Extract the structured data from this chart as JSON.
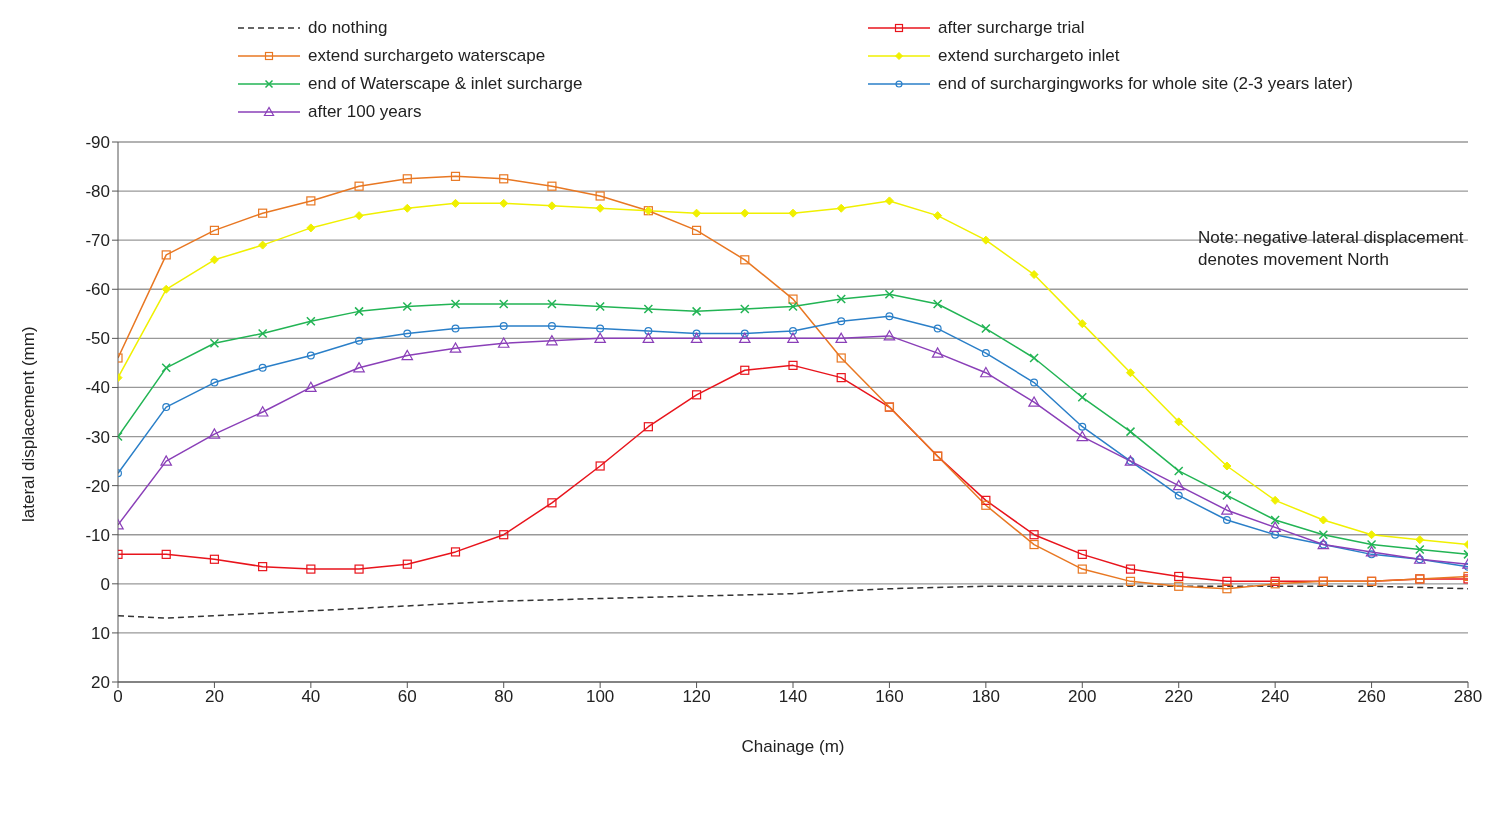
{
  "chart_data": {
    "type": "line",
    "xlabel": "Chainage (m)",
    "ylabel": "lateral displacement (mm)",
    "x": [
      0,
      10,
      20,
      30,
      40,
      50,
      60,
      70,
      80,
      90,
      100,
      110,
      120,
      130,
      140,
      150,
      160,
      170,
      180,
      190,
      200,
      210,
      220,
      230,
      240,
      250,
      260,
      270,
      280
    ],
    "series": [
      {
        "name": "do nothing",
        "color": "#333333",
        "marker": "none",
        "line_style": "dashed",
        "x": [
          0,
          10,
          20,
          40,
          60,
          80,
          100,
          120,
          140,
          160,
          180,
          200,
          220,
          240,
          260,
          280
        ],
        "values": [
          6.5,
          7,
          6.5,
          5.5,
          4.5,
          3.5,
          3,
          2.5,
          2,
          1,
          0.5,
          0.5,
          0.5,
          0.5,
          0.5,
          1
        ]
      },
      {
        "name": "after surcharge trial",
        "color": "#e8141c",
        "marker": "square",
        "values": [
          -6,
          -6,
          -5,
          -3.5,
          -3,
          -3,
          -4,
          -6.5,
          -10,
          -16.5,
          -24,
          -32,
          -38.5,
          -43.5,
          -44.5,
          -42,
          -36,
          -26,
          -17,
          -10,
          -6,
          -3,
          -1.5,
          -0.5,
          -0.5,
          -0.5,
          -0.5,
          -1,
          -1
        ]
      },
      {
        "name": "extend surchargeto waterscape",
        "color": "#e87722",
        "marker": "square",
        "values": [
          -46,
          -67,
          -72,
          -75.5,
          -78,
          -81,
          -82.5,
          -83,
          -82.5,
          -81,
          -79,
          -76,
          -72,
          -66,
          -58,
          -46,
          -36,
          -26,
          -16,
          -8,
          -3,
          -0.5,
          0.5,
          1,
          0,
          -0.5,
          -0.5,
          -1,
          -1.5
        ]
      },
      {
        "name": "extend surchargeto inlet",
        "color": "#f0f000",
        "marker": "diamond",
        "values": [
          -42,
          -60,
          -66,
          -69,
          -72.5,
          -75,
          -76.5,
          -77.5,
          -77.5,
          -77,
          -76.5,
          -76,
          -75.5,
          -75.5,
          -75.5,
          -76.5,
          -78,
          -75,
          -70,
          -63,
          -53,
          -43,
          -33,
          -24,
          -17,
          -13,
          -10,
          -9,
          -8
        ]
      },
      {
        "name": "end of Waterscape & inlet surcharge",
        "color": "#22b454",
        "marker": "cross",
        "values": [
          -30,
          -44,
          -49,
          -51,
          -53.5,
          -55.5,
          -56.5,
          -57,
          -57,
          -57,
          -56.5,
          -56,
          -55.5,
          -56,
          -56.5,
          -58,
          -59,
          -57,
          -52,
          -46,
          -38,
          -31,
          -23,
          -18,
          -13,
          -10,
          -8,
          -7,
          -6
        ]
      },
      {
        "name": "end of surchargingworks for whole site (2-3 years later)",
        "color": "#2a7fc8",
        "marker": "circle",
        "values": [
          -22.5,
          -36,
          -41,
          -44,
          -46.5,
          -49.5,
          -51,
          -52,
          -52.5,
          -52.5,
          -52,
          -51.5,
          -51,
          -51,
          -51.5,
          -53.5,
          -54.5,
          -52,
          -47,
          -41,
          -32,
          -25,
          -18,
          -13,
          -10,
          -8,
          -6,
          -5,
          -3.5
        ]
      },
      {
        "name": "after 100 years",
        "color": "#8a3fb8",
        "marker": "triangle",
        "values": [
          -12,
          -25,
          -30.5,
          -35,
          -40,
          -44,
          -46.5,
          -48,
          -49,
          -49.5,
          -50,
          -50,
          -50,
          -50,
          -50,
          -50,
          -50.5,
          -47,
          -43,
          -37,
          -30,
          -25,
          -20,
          -15,
          -11.5,
          -8,
          -6.5,
          -5,
          -4
        ]
      }
    ],
    "xlim": [
      0,
      280
    ],
    "xticks": [
      0,
      20,
      40,
      60,
      80,
      100,
      120,
      140,
      160,
      180,
      200,
      220,
      240,
      260,
      280
    ],
    "ylim": [
      20,
      -90
    ],
    "yticks": [
      -90,
      -80,
      -70,
      -60,
      -50,
      -40,
      -30,
      -20,
      -10,
      0,
      10,
      20
    ],
    "grid": "y",
    "legend": "top",
    "annotations": [
      "Note: negative lateral displacement denotes movement North"
    ]
  }
}
